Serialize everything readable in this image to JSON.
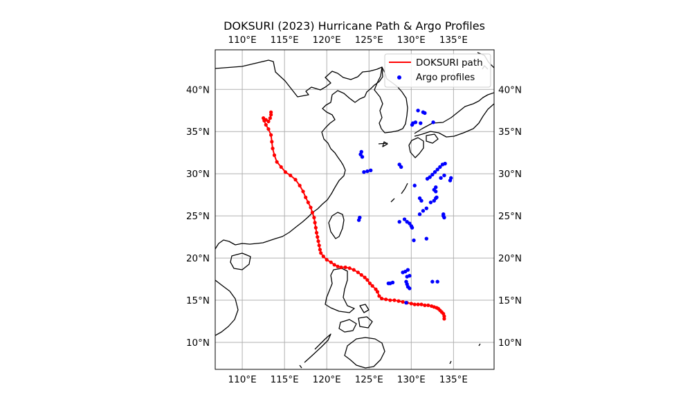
{
  "title": "DOKSURI (2023) Hurricane Path & Argo Profiles",
  "colors": {
    "track": "#ff0000",
    "argo": "#0000ff",
    "coast": "#000000",
    "grid": "#b0b0b0"
  },
  "legend": {
    "track_label": "DOKSURI path",
    "argo_label": "Argo profiles"
  },
  "chart_data": {
    "type": "scatter",
    "title": "DOKSURI (2023) Hurricane Path & Argo Profiles",
    "xlim": [
      106.8,
      139.8
    ],
    "ylim": [
      6.8,
      44.7
    ],
    "x_ticks": [
      110,
      115,
      120,
      125,
      130,
      135
    ],
    "y_ticks": [
      10,
      15,
      20,
      25,
      30,
      35,
      40
    ],
    "x_tick_labels": [
      "110°E",
      "115°E",
      "120°E",
      "125°E",
      "130°E",
      "135°E"
    ],
    "y_tick_labels": [
      "10°N",
      "15°N",
      "20°N",
      "25°N",
      "30°N",
      "35°N",
      "40°N"
    ],
    "grid": true,
    "legend_position": "top-right",
    "series": [
      {
        "name": "DOKSURI path",
        "kind": "line",
        "points": [
          [
            133.9,
            12.8
          ],
          [
            133.9,
            13.1
          ],
          [
            133.8,
            13.4
          ],
          [
            133.6,
            13.6
          ],
          [
            133.4,
            13.8
          ],
          [
            133.2,
            14.0
          ],
          [
            133.0,
            14.1
          ],
          [
            132.7,
            14.2
          ],
          [
            132.4,
            14.3
          ],
          [
            132.0,
            14.4
          ],
          [
            131.6,
            14.4
          ],
          [
            131.2,
            14.5
          ],
          [
            130.8,
            14.5
          ],
          [
            130.4,
            14.5
          ],
          [
            130.0,
            14.6
          ],
          [
            129.5,
            14.7
          ],
          [
            129.0,
            14.8
          ],
          [
            128.5,
            14.9
          ],
          [
            128.0,
            15.0
          ],
          [
            127.5,
            15.0
          ],
          [
            127.0,
            15.1
          ],
          [
            126.5,
            15.2
          ],
          [
            126.2,
            15.5
          ],
          [
            126.0,
            16.0
          ],
          [
            125.8,
            16.3
          ],
          [
            125.4,
            16.7
          ],
          [
            125.1,
            17.0
          ],
          [
            124.8,
            17.4
          ],
          [
            124.5,
            17.7
          ],
          [
            124.1,
            18.0
          ],
          [
            123.7,
            18.3
          ],
          [
            123.2,
            18.6
          ],
          [
            122.7,
            18.8
          ],
          [
            122.2,
            18.9
          ],
          [
            121.7,
            18.9
          ],
          [
            121.3,
            19.0
          ],
          [
            120.9,
            19.2
          ],
          [
            120.5,
            19.5
          ],
          [
            120.0,
            19.8
          ],
          [
            119.6,
            20.2
          ],
          [
            119.3,
            20.6
          ],
          [
            119.2,
            21.0
          ],
          [
            119.1,
            21.5
          ],
          [
            119.0,
            22.0
          ],
          [
            118.9,
            22.5
          ],
          [
            118.8,
            23.0
          ],
          [
            118.7,
            23.6
          ],
          [
            118.6,
            24.2
          ],
          [
            118.5,
            24.8
          ],
          [
            118.3,
            25.4
          ],
          [
            118.1,
            26.0
          ],
          [
            117.8,
            26.6
          ],
          [
            117.5,
            27.2
          ],
          [
            117.2,
            27.9
          ],
          [
            116.8,
            28.6
          ],
          [
            116.3,
            29.3
          ],
          [
            115.7,
            29.8
          ],
          [
            115.1,
            30.2
          ],
          [
            114.6,
            30.8
          ],
          [
            114.1,
            31.4
          ],
          [
            113.8,
            32.2
          ],
          [
            113.6,
            33.0
          ],
          [
            113.5,
            33.8
          ],
          [
            113.4,
            34.6
          ],
          [
            113.1,
            35.3
          ],
          [
            112.8,
            35.8
          ],
          [
            112.6,
            36.3
          ],
          [
            112.5,
            36.6
          ],
          [
            112.8,
            36.4
          ],
          [
            113.1,
            36.2
          ],
          [
            113.3,
            36.6
          ],
          [
            113.4,
            37.0
          ],
          [
            113.4,
            37.3
          ]
        ]
      },
      {
        "name": "Argo profiles",
        "kind": "scatter",
        "points": [
          [
            124.0,
            32.3
          ],
          [
            124.2,
            32.0
          ],
          [
            124.1,
            32.6
          ],
          [
            124.4,
            30.2
          ],
          [
            124.8,
            30.3
          ],
          [
            125.2,
            30.4
          ],
          [
            123.9,
            24.8
          ],
          [
            123.8,
            24.5
          ],
          [
            128.6,
            31.1
          ],
          [
            128.8,
            30.8
          ],
          [
            129.3,
            18.4
          ],
          [
            129.0,
            18.3
          ],
          [
            129.6,
            18.6
          ],
          [
            129.8,
            17.9
          ],
          [
            129.5,
            17.8
          ],
          [
            127.5,
            17.0
          ],
          [
            127.8,
            17.1
          ],
          [
            127.3,
            17.0
          ],
          [
            129.5,
            16.9
          ],
          [
            129.6,
            16.6
          ],
          [
            129.4,
            17.2
          ],
          [
            129.8,
            16.4
          ],
          [
            130.3,
            22.1
          ],
          [
            130.1,
            23.6
          ],
          [
            130.0,
            23.8
          ],
          [
            128.6,
            24.3
          ],
          [
            129.2,
            24.6
          ],
          [
            129.5,
            24.3
          ],
          [
            129.8,
            24.1
          ],
          [
            130.4,
            28.6
          ],
          [
            131.0,
            27.1
          ],
          [
            131.2,
            26.8
          ],
          [
            131.0,
            25.2
          ],
          [
            131.4,
            25.6
          ],
          [
            131.8,
            25.9
          ],
          [
            132.3,
            26.6
          ],
          [
            132.7,
            26.8
          ],
          [
            132.9,
            27.1
          ],
          [
            133.0,
            27.2
          ],
          [
            131.8,
            22.3
          ],
          [
            132.5,
            17.2
          ],
          [
            133.1,
            17.2
          ],
          [
            129.4,
            14.7
          ],
          [
            130.1,
            35.8
          ],
          [
            130.2,
            36.0
          ],
          [
            130.5,
            36.1
          ],
          [
            131.1,
            36.0
          ],
          [
            131.4,
            37.3
          ],
          [
            131.6,
            37.2
          ],
          [
            130.8,
            37.5
          ],
          [
            132.6,
            36.1
          ],
          [
            131.9,
            29.4
          ],
          [
            132.2,
            29.6
          ],
          [
            132.5,
            29.9
          ],
          [
            132.8,
            30.2
          ],
          [
            133.1,
            30.5
          ],
          [
            133.4,
            30.8
          ],
          [
            133.7,
            31.1
          ],
          [
            134.0,
            31.2
          ],
          [
            133.9,
            29.8
          ],
          [
            133.5,
            29.5
          ],
          [
            134.6,
            29.2
          ],
          [
            134.7,
            29.5
          ],
          [
            132.7,
            28.1
          ],
          [
            132.9,
            27.9
          ],
          [
            133.8,
            25.0
          ],
          [
            133.9,
            24.8
          ],
          [
            133.8,
            25.2
          ],
          [
            132.9,
            28.4
          ]
        ]
      }
    ]
  }
}
